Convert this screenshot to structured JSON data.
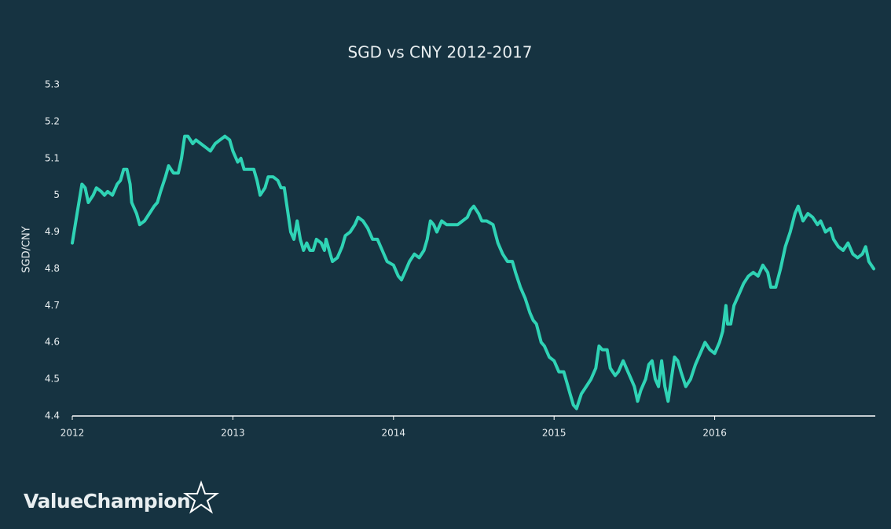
{
  "chart_data": {
    "type": "line",
    "title": "SGD vs CNY 2012-2017",
    "ylabel": "SGD/CNY",
    "brand": "ValueChampion",
    "xlim": [
      2012,
      2017
    ],
    "xticks": [
      2012,
      2013,
      2014,
      2015,
      2016
    ],
    "ylim": [
      4.4,
      5.3
    ],
    "yticks": [
      4.4,
      4.5,
      4.6,
      4.7,
      4.8,
      4.9,
      5,
      5.1,
      5.2,
      5.3
    ],
    "grid": false,
    "x": [
      2012.0,
      2012.03,
      2012.06,
      2012.08,
      2012.1,
      2012.13,
      2012.15,
      2012.18,
      2012.2,
      2012.22,
      2012.25,
      2012.28,
      2012.3,
      2012.32,
      2012.34,
      2012.36,
      2012.37,
      2012.4,
      2012.42,
      2012.45,
      2012.48,
      2012.51,
      2012.53,
      2012.55,
      2012.58,
      2012.6,
      2012.63,
      2012.66,
      2012.68,
      2012.7,
      2012.72,
      2012.75,
      2012.77,
      2012.8,
      2012.83,
      2012.86,
      2012.89,
      2012.92,
      2012.95,
      2012.98,
      2013.0,
      2013.03,
      2013.05,
      2013.07,
      2013.1,
      2013.13,
      2013.15,
      2013.17,
      2013.2,
      2013.22,
      2013.25,
      2013.28,
      2013.3,
      2013.32,
      2013.34,
      2013.36,
      2013.38,
      2013.4,
      2013.42,
      2013.44,
      2013.46,
      2013.48,
      2013.5,
      2013.52,
      2013.55,
      2013.57,
      2013.58,
      2013.6,
      2013.62,
      2013.65,
      2013.68,
      2013.7,
      2013.73,
      2013.76,
      2013.78,
      2013.81,
      2013.84,
      2013.87,
      2013.9,
      2013.93,
      2013.96,
      2014.0,
      2014.03,
      2014.05,
      2014.08,
      2014.1,
      2014.13,
      2014.16,
      2014.19,
      2014.21,
      2014.23,
      2014.25,
      2014.27,
      2014.3,
      2014.33,
      2014.36,
      2014.4,
      2014.43,
      2014.46,
      2014.48,
      2014.5,
      2014.53,
      2014.55,
      2014.58,
      2014.62,
      2014.65,
      2014.68,
      2014.71,
      2014.74,
      2014.76,
      2014.79,
      2014.82,
      2014.85,
      2014.87,
      2014.89,
      2014.92,
      2014.94,
      2014.97,
      2015.0,
      2015.03,
      2015.06,
      2015.08,
      2015.1,
      2015.12,
      2015.14,
      2015.17,
      2015.2,
      2015.23,
      2015.26,
      2015.28,
      2015.3,
      2015.33,
      2015.35,
      2015.38,
      2015.4,
      2015.43,
      2015.46,
      2015.48,
      2015.5,
      2015.52,
      2015.54,
      2015.57,
      2015.59,
      2015.61,
      2015.63,
      2015.65,
      2015.67,
      2015.69,
      2015.71,
      2015.73,
      2015.75,
      2015.77,
      2015.79,
      2015.82,
      2015.85,
      2015.88,
      2015.91,
      2015.94,
      2015.97,
      2016.0,
      2016.03,
      2016.05,
      2016.07,
      2016.08,
      2016.1,
      2016.12,
      2016.15,
      2016.18,
      2016.21,
      2016.24,
      2016.27,
      2016.3,
      2016.33,
      2016.35,
      2016.38,
      2016.41,
      2016.44,
      2016.47,
      2016.5,
      2016.52,
      2016.55,
      2016.58,
      2016.61,
      2016.64,
      2016.66,
      2016.69,
      2016.72,
      2016.74,
      2016.77,
      2016.8,
      2016.83,
      2016.86,
      2016.89,
      2016.92,
      2016.94,
      2016.96,
      2016.99
    ],
    "series": [
      {
        "name": "SGD/CNY",
        "color": "#2fd3b5",
        "values": [
          4.87,
          4.95,
          5.03,
          5.02,
          4.98,
          5.0,
          5.02,
          5.01,
          5.0,
          5.01,
          5.0,
          5.03,
          5.04,
          5.07,
          5.07,
          5.03,
          4.98,
          4.95,
          4.92,
          4.93,
          4.95,
          4.97,
          4.98,
          5.01,
          5.05,
          5.08,
          5.06,
          5.06,
          5.1,
          5.16,
          5.16,
          5.14,
          5.15,
          5.14,
          5.13,
          5.12,
          5.14,
          5.15,
          5.16,
          5.15,
          5.12,
          5.09,
          5.1,
          5.07,
          5.07,
          5.07,
          5.04,
          5.0,
          5.02,
          5.05,
          5.05,
          5.04,
          5.02,
          5.02,
          4.96,
          4.9,
          4.88,
          4.93,
          4.88,
          4.85,
          4.87,
          4.85,
          4.85,
          4.88,
          4.87,
          4.85,
          4.88,
          4.85,
          4.82,
          4.83,
          4.86,
          4.89,
          4.9,
          4.92,
          4.94,
          4.93,
          4.91,
          4.88,
          4.88,
          4.85,
          4.82,
          4.81,
          4.78,
          4.77,
          4.8,
          4.82,
          4.84,
          4.83,
          4.85,
          4.88,
          4.93,
          4.92,
          4.9,
          4.93,
          4.92,
          4.92,
          4.92,
          4.93,
          4.94,
          4.96,
          4.97,
          4.95,
          4.93,
          4.93,
          4.92,
          4.87,
          4.84,
          4.82,
          4.82,
          4.79,
          4.75,
          4.72,
          4.68,
          4.66,
          4.65,
          4.6,
          4.59,
          4.56,
          4.55,
          4.52,
          4.52,
          4.49,
          4.46,
          4.43,
          4.42,
          4.46,
          4.48,
          4.5,
          4.53,
          4.59,
          4.58,
          4.58,
          4.53,
          4.51,
          4.52,
          4.55,
          4.52,
          4.5,
          4.48,
          4.44,
          4.47,
          4.5,
          4.54,
          4.55,
          4.5,
          4.48,
          4.55,
          4.48,
          4.44,
          4.5,
          4.56,
          4.55,
          4.52,
          4.48,
          4.5,
          4.54,
          4.57,
          4.6,
          4.58,
          4.57,
          4.6,
          4.63,
          4.7,
          4.65,
          4.65,
          4.7,
          4.73,
          4.76,
          4.78,
          4.79,
          4.78,
          4.81,
          4.79,
          4.75,
          4.75,
          4.8,
          4.86,
          4.9,
          4.95,
          4.97,
          4.93,
          4.95,
          4.94,
          4.92,
          4.93,
          4.9,
          4.91,
          4.88,
          4.86,
          4.85,
          4.87,
          4.84,
          4.83,
          4.84,
          4.86,
          4.82,
          4.8
        ]
      }
    ]
  }
}
